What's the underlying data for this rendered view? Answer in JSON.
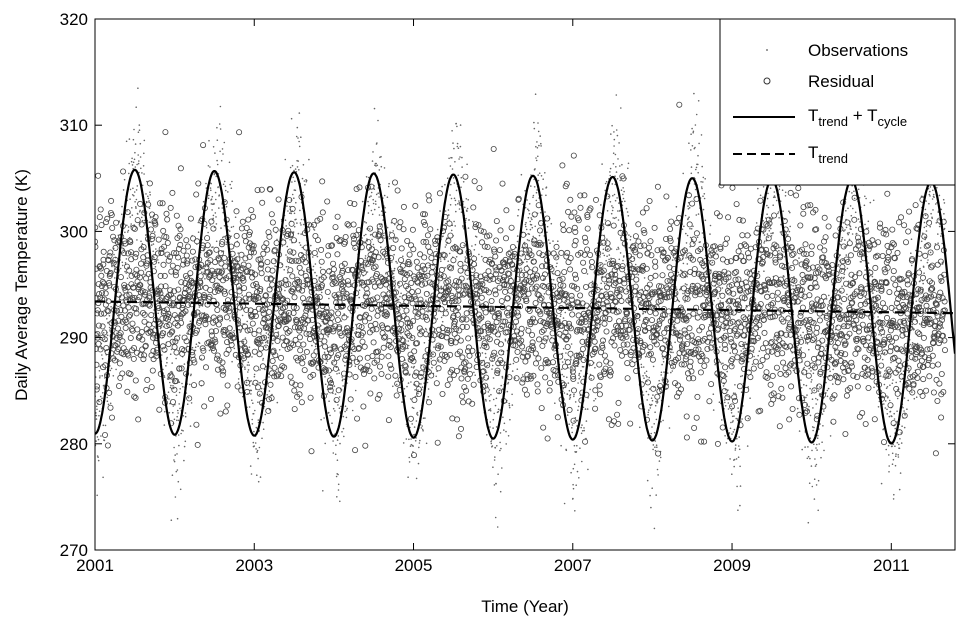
{
  "chart_data": {
    "type": "scatter",
    "title": "",
    "xlabel": "Time (Year)",
    "ylabel": "Daily Average Temperature (K)",
    "xlim": [
      2001,
      2011.8
    ],
    "ylim": [
      270,
      320
    ],
    "x_ticks": [
      2001,
      2003,
      2005,
      2007,
      2009,
      2011
    ],
    "y_ticks": [
      270,
      280,
      290,
      300,
      310,
      320
    ],
    "x_tick_labels": [
      "2001",
      "2003",
      "2005",
      "2007",
      "2009",
      "2011"
    ],
    "y_tick_labels": [
      "270",
      "280",
      "290",
      "300",
      "310",
      "320"
    ],
    "grid": false,
    "legend": {
      "position": "top-right",
      "entries": [
        {
          "label": "Observations",
          "marker": "dot"
        },
        {
          "label": "Residual",
          "marker": "circle"
        },
        {
          "label_main": "T",
          "label_sub1": "trend",
          "label_plus": " + T",
          "label_sub2": "cycle",
          "marker": "solid-line"
        },
        {
          "label_main": "T",
          "label_sub1": "trend",
          "marker": "dashed-line"
        }
      ]
    },
    "series": [
      {
        "name": "T_trend + T_cycle",
        "style": "solid",
        "x": [
          2001.0,
          2001.25,
          2001.54,
          2001.79,
          2002.04,
          2002.29,
          2002.54,
          2002.79,
          2003.04,
          2003.29,
          2003.54,
          2003.79,
          2004.04,
          2004.29,
          2004.54,
          2004.79,
          2005.04,
          2005.29,
          2005.54,
          2005.79,
          2006.04,
          2006.29,
          2006.54,
          2006.79,
          2007.04,
          2007.29,
          2007.54,
          2007.79,
          2008.04,
          2008.29,
          2008.54,
          2008.79,
          2009.04,
          2009.29,
          2009.54,
          2009.79,
          2010.04,
          2010.29,
          2010.54,
          2010.79,
          2011.04,
          2011.29,
          2011.54,
          2011.79
        ],
        "y": [
          281.0,
          293.4,
          305.9,
          293.4,
          280.9,
          293.3,
          305.8,
          293.3,
          280.8,
          293.2,
          305.7,
          293.2,
          280.7,
          293.1,
          305.6,
          293.1,
          280.6,
          293.0,
          305.5,
          293.0,
          280.5,
          292.9,
          305.4,
          292.9,
          280.4,
          292.8,
          305.3,
          292.8,
          280.3,
          292.7,
          305.2,
          292.7,
          280.2,
          292.6,
          305.1,
          292.6,
          280.1,
          292.5,
          305.0,
          292.5,
          280.0,
          292.4,
          304.9,
          292.4
        ]
      },
      {
        "name": "T_trend",
        "style": "dashed",
        "x": [
          2001.0,
          2011.8
        ],
        "y": [
          293.4,
          292.3
        ]
      },
      {
        "name": "Observations",
        "style": "dots",
        "description_stats": {
          "mean_offset_from_curve": 0,
          "spread": 3.5
        }
      },
      {
        "name": "Residual",
        "style": "circles",
        "description_stats": {
          "center": 293,
          "spread": 4.5
        }
      }
    ]
  }
}
